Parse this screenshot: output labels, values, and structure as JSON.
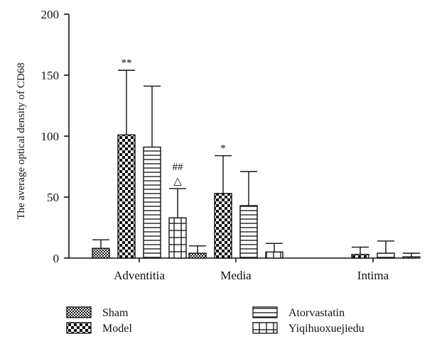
{
  "chart_data": {
    "type": "bar",
    "title": "",
    "xlabel": "",
    "ylabel": "The average optical density of CD68",
    "ylim": [
      0,
      200
    ],
    "yticks": [
      0,
      50,
      100,
      150,
      200
    ],
    "categories": [
      "Adventitia",
      "Media",
      "Intima"
    ],
    "series": [
      {
        "name": "Sham",
        "pattern": "dense-check",
        "values": [
          8,
          4,
          0
        ],
        "errors": [
          7,
          6,
          0
        ]
      },
      {
        "name": "Model",
        "pattern": "checker",
        "values": [
          101,
          53,
          3
        ],
        "errors": [
          53,
          31,
          6
        ]
      },
      {
        "name": "Atorvastatin",
        "pattern": "horizontal-lines",
        "values": [
          91,
          43,
          4
        ],
        "errors": [
          50,
          28,
          10
        ]
      },
      {
        "name": "Yiqihuoxuejiedu",
        "pattern": "grid",
        "values": [
          33,
          5,
          1
        ],
        "errors": [
          24,
          7,
          3
        ]
      }
    ],
    "annotations": [
      {
        "category": "Adventitia",
        "series": "Model",
        "lines": [
          "**"
        ]
      },
      {
        "category": "Adventitia",
        "series": "Yiqihuoxuejiedu",
        "lines": [
          "##",
          "△"
        ]
      },
      {
        "category": "Media",
        "series": "Model",
        "lines": [
          "*"
        ]
      }
    ],
    "legend_placement": "bottom",
    "grid": false
  }
}
